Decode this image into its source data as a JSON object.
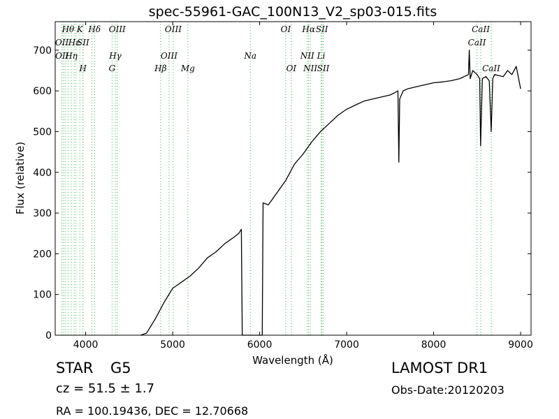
{
  "chart_data": {
    "type": "line",
    "title": "spec-55961-GAC_100N13_V2_sp03-015.fits",
    "xlabel": "Wavelength (Å)",
    "ylabel": "Flux (relative)",
    "xlim": [
      3650,
      9120
    ],
    "ylim": [
      0,
      770
    ],
    "xticks": [
      4000,
      5000,
      6000,
      7000,
      8000,
      9000
    ],
    "yticks": [
      0,
      100,
      200,
      300,
      400,
      500,
      600,
      700
    ],
    "grid": false,
    "series": [
      {
        "x": [
          4630,
          4700,
          4800,
          4900,
          5000,
          5100,
          5200,
          5300,
          5400,
          5500,
          5600,
          5700,
          5760,
          5790,
          5800,
          6000,
          6030,
          6040,
          6100,
          6200,
          6300,
          6350,
          6400,
          6500,
          6600,
          6700,
          6800,
          6900,
          7000,
          7100,
          7200,
          7300,
          7400,
          7500,
          7550,
          7590,
          7600,
          7610,
          7650,
          7700,
          7800,
          7900,
          8000,
          8100,
          8200,
          8300,
          8400,
          8410,
          8420,
          8450,
          8500,
          8530,
          8540,
          8560,
          8600,
          8640,
          8662,
          8680,
          8700,
          8800,
          8850,
          8900,
          8950,
          9000
        ],
        "y": [
          0,
          5,
          40,
          80,
          115,
          130,
          145,
          165,
          190,
          205,
          225,
          240,
          250,
          260,
          0,
          0,
          0,
          325,
          320,
          350,
          380,
          400,
          420,
          445,
          475,
          500,
          520,
          540,
          555,
          565,
          575,
          580,
          585,
          590,
          595,
          600,
          425,
          580,
          600,
          605,
          610,
          615,
          620,
          622,
          625,
          630,
          640,
          700,
          630,
          650,
          640,
          630,
          465,
          630,
          635,
          625,
          500,
          630,
          640,
          635,
          650,
          640,
          660,
          605
        ]
      }
    ],
    "lines": [
      {
        "x": 3727,
        "label": "OII",
        "row": 2
      },
      {
        "x": 3729,
        "label": "OII",
        "row": 3
      },
      {
        "x": 3750,
        "label": "",
        "row": 0
      },
      {
        "x": 3770,
        "label": "",
        "row": 0
      },
      {
        "x": 3798,
        "label": "Hθ",
        "row": 1
      },
      {
        "x": 3835,
        "label": "Hη",
        "row": 3
      },
      {
        "x": 3869,
        "label": "Hε",
        "row": 2
      },
      {
        "x": 3889,
        "label": "",
        "row": 0
      },
      {
        "x": 3933,
        "label": "K",
        "row": 1
      },
      {
        "x": 3969,
        "label": "H",
        "row": 4
      },
      {
        "x": 3970,
        "label": "SII",
        "row": 2
      },
      {
        "x": 4072,
        "label": "",
        "row": 0
      },
      {
        "x": 4102,
        "label": "Hδ",
        "row": 1
      },
      {
        "x": 4304,
        "label": "G",
        "row": 4
      },
      {
        "x": 4341,
        "label": "Hγ",
        "row": 3
      },
      {
        "x": 4363,
        "label": "OIII",
        "row": 1
      },
      {
        "x": 4861,
        "label": "Hβ",
        "row": 4
      },
      {
        "x": 4959,
        "label": "OIII",
        "row": 3
      },
      {
        "x": 5007,
        "label": "OIII",
        "row": 1
      },
      {
        "x": 5175,
        "label": "Mg",
        "row": 4
      },
      {
        "x": 5893,
        "label": "Na",
        "row": 3
      },
      {
        "x": 6300,
        "label": "OI",
        "row": 1
      },
      {
        "x": 6364,
        "label": "OI",
        "row": 4
      },
      {
        "x": 6548,
        "label": "NII",
        "row": 3
      },
      {
        "x": 6563,
        "label": "Hα",
        "row": 1
      },
      {
        "x": 6583,
        "label": "NII",
        "row": 4
      },
      {
        "x": 6707,
        "label": "Li",
        "row": 3
      },
      {
        "x": 6716,
        "label": "SII",
        "row": 1
      },
      {
        "x": 6731,
        "label": "SII",
        "row": 4
      },
      {
        "x": 8498,
        "label": "CaII",
        "row": 2
      },
      {
        "x": 8542,
        "label": "CaII",
        "row": 1
      },
      {
        "x": 8662,
        "label": "CaII",
        "row": 4
      }
    ]
  },
  "info": {
    "object_class": "STAR",
    "subclass": "G5",
    "survey": "LAMOST DR1",
    "cz": "cz = 51.5 ± 1.7",
    "obs_date": "Obs-Date:20120203",
    "coords": "RA = 100.19436, DEC = 12.70668"
  },
  "colors": {
    "spectrum": "#000000",
    "line_marker": "#3cb44b"
  }
}
